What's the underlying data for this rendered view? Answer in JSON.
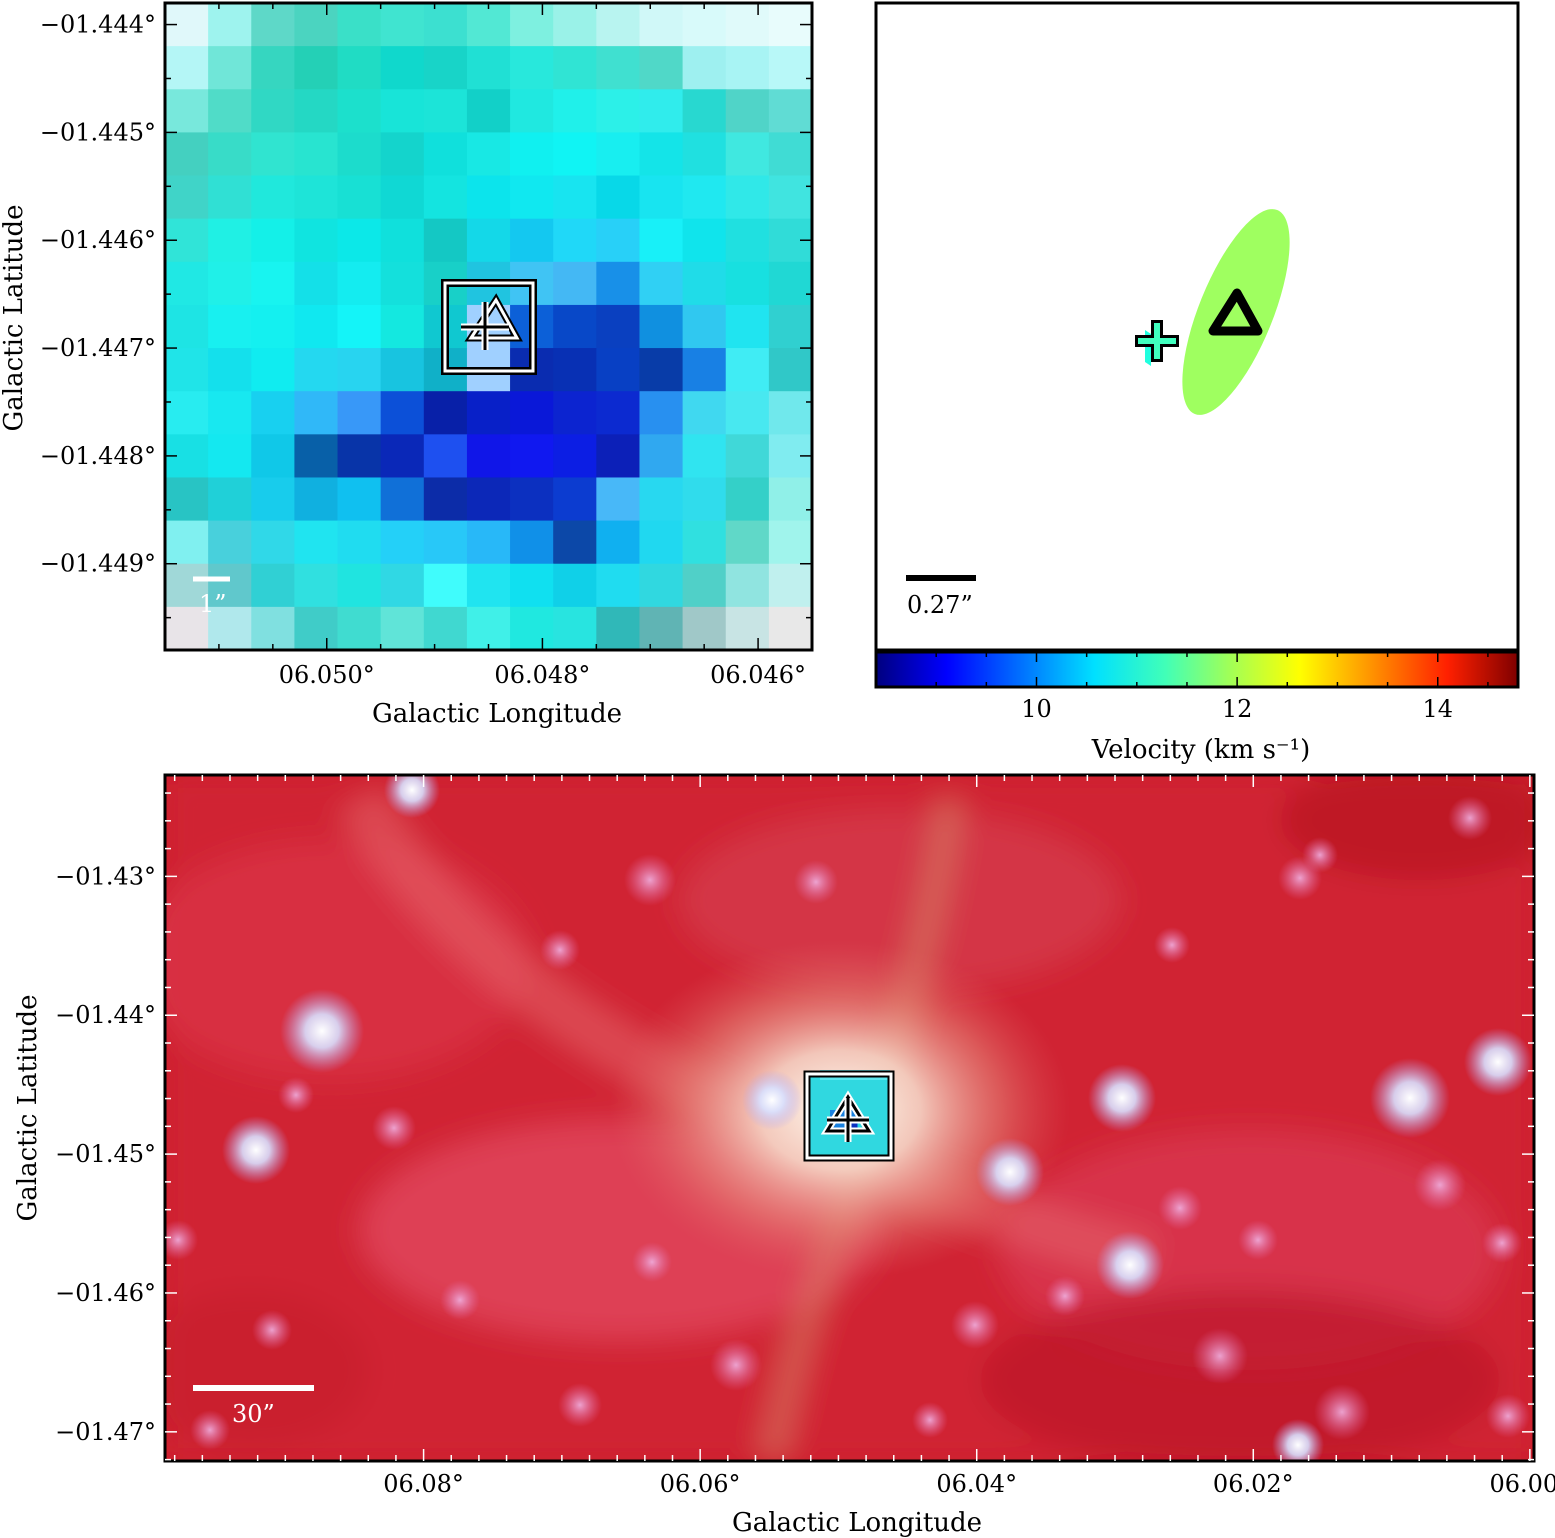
{
  "chart_data": [
    {
      "type": "heatmap",
      "panel": "top-left",
      "xlabel": "Galactic Longitude",
      "ylabel": "Galactic Latitude",
      "x_ticks": [
        "06.050°",
        "06.048°",
        "06.046°"
      ],
      "x_tick_values": [
        6.05,
        6.048,
        6.046
      ],
      "y_ticks": [
        "−01.444°",
        "−01.445°",
        "−01.446°",
        "−01.447°",
        "−01.448°",
        "−01.449°"
      ],
      "y_tick_values": [
        -1.444,
        -1.445,
        -1.446,
        -1.447,
        -1.448,
        -1.449
      ],
      "xlim": [
        6.0515,
        6.0455
      ],
      "ylim": [
        -1.4498,
        -1.4438
      ],
      "scale_bar_label": "1”",
      "pixel_grid": {
        "rows": 15,
        "cols": 15,
        "colors": [
          [
            "#e0f8fa",
            "#9ef3ee",
            "#5ed8c8",
            "#4bd4c0",
            "#3ae0c8",
            "#40e4d0",
            "#3ce0d0",
            "#52e8d4",
            "#7ef0e0",
            "#9af2e8",
            "#b8f4f0",
            "#d0f8f8",
            "#d8fafa",
            "#e0fafa",
            "#e8fcfc"
          ],
          [
            "#b4f6f6",
            "#70e6d8",
            "#36d6c0",
            "#24d0b6",
            "#20dcc4",
            "#10d8cc",
            "#18d4c8",
            "#20e0d4",
            "#28e8dc",
            "#30e4d4",
            "#40e0d0",
            "#50d8c8",
            "#9ef0f0",
            "#a8f4f4",
            "#b8f8f8"
          ],
          [
            "#78e8dc",
            "#50dcc8",
            "#30d8c4",
            "#24d8c4",
            "#1ce0cc",
            "#18e4d8",
            "#1ce4d8",
            "#12d0c8",
            "#20e8e0",
            "#20f0ea",
            "#2cf0e8",
            "#30ecec",
            "#28d8d0",
            "#50d4c8",
            "#60dcd4"
          ],
          [
            "#44d0c0",
            "#38dcc8",
            "#30e4d0",
            "#28e4d0",
            "#1cdccc",
            "#14d4cc",
            "#10e0dc",
            "#18e8e4",
            "#10f0f0",
            "#10f4f4",
            "#18eef0",
            "#14e4e8",
            "#20e0e0",
            "#40e8e0",
            "#40dcd4"
          ],
          [
            "#40d4c8",
            "#30e0d4",
            "#20e8dc",
            "#1ee4d8",
            "#18e0d4",
            "#10d8d4",
            "#14e4e0",
            "#0ce4ec",
            "#10e8f0",
            "#18e4f0",
            "#08d8e8",
            "#18e4f0",
            "#20e8f0",
            "#30e8e8",
            "#40e4e0"
          ],
          [
            "#30e4d8",
            "#20f0e4",
            "#14f0e8",
            "#10e4e0",
            "#0ce8e8",
            "#10e0dc",
            "#14c8c4",
            "#14d8e8",
            "#14c8f0",
            "#20d8f8",
            "#28d0f8",
            "#18f0f8",
            "#10e4ec",
            "#20e0e0",
            "#30dcd8"
          ],
          [
            "#20e8e4",
            "#20f0e8",
            "#18f4f0",
            "#14e0e8",
            "#14ecf0",
            "#14e0dc",
            "#18d0c8",
            "#20c4e0",
            "#40c4f4",
            "#44b8f4",
            "#1890e8",
            "#30d0f4",
            "#20dce8",
            "#18e0e0",
            "#20d8d4"
          ],
          [
            "#1ee4e4",
            "#18f0f0",
            "#14f0f0",
            "#10e8f0",
            "#14f4f8",
            "#14e8e0",
            "#10c8d0",
            "#a0d0ff",
            "#0c60d8",
            "#0848c8",
            "#0a40c0",
            "#1090e0",
            "#30c8f0",
            "#20e4f0",
            "#30d0d0"
          ],
          [
            "#20e4e8",
            "#14e0ec",
            "#10ecf0",
            "#24d8f0",
            "#28d4f0",
            "#18c4e0",
            "#10b0c8",
            "#a0d0ff",
            "#0a2cb0",
            "#0830b4",
            "#0840c4",
            "#083ca8",
            "#1880e4",
            "#40ecf4",
            "#30c8c8"
          ],
          [
            "#28ecf0",
            "#18e8f0",
            "#18d0f0",
            "#30b8f8",
            "#3898f8",
            "#0c50d8",
            "#0820a8",
            "#0820c8",
            "#0a18d8",
            "#0c24d0",
            "#0c2ad0",
            "#2890f0",
            "#40d8f0",
            "#48e8f0",
            "#70e8ec"
          ],
          [
            "#18e0e4",
            "#14e8f0",
            "#10c8e8",
            "#0860a8",
            "#0834a8",
            "#0a28b8",
            "#1e50f0",
            "#1016e8",
            "#1018f0",
            "#0c1ee4",
            "#0c20b8",
            "#30a8f0",
            "#30e4f0",
            "#40d8d8",
            "#80ecf0"
          ],
          [
            "#28c4c4",
            "#20d0d8",
            "#18ccec",
            "#10b0e0",
            "#10c0f0",
            "#1070d8",
            "#0c2ca8",
            "#0c28b8",
            "#0c30c0",
            "#0c3cd0",
            "#48b8f8",
            "#28d8f0",
            "#30dcec",
            "#34d0c8",
            "#90f0e8"
          ],
          [
            "#80f0f0",
            "#48d0dc",
            "#30d8e8",
            "#20e4f0",
            "#20dcf0",
            "#24d0f8",
            "#28c8f8",
            "#28b8f8",
            "#1090e8",
            "#0c48a8",
            "#10b0f0",
            "#20d8f0",
            "#30e0e0",
            "#60d8c8",
            "#a0f4ec"
          ],
          [
            "#a0d8d8",
            "#60c8cc",
            "#30d0d4",
            "#30e0e0",
            "#20e4e0",
            "#30d8e4",
            "#40fcfc",
            "#20e4f0",
            "#10e0f0",
            "#10d0e8",
            "#20dcf0",
            "#30d8e0",
            "#50d0c8",
            "#90e4e0",
            "#c0f0ee"
          ],
          [
            "#e8e4e8",
            "#b0e8ec",
            "#80e0e0",
            "#40ccc8",
            "#40dcd0",
            "#60e4d8",
            "#40d8d0",
            "#40f0e8",
            "#20e8e0",
            "#28e4e0",
            "#30b8b8",
            "#60b4b4",
            "#a0c8c8",
            "#c8e4e4",
            "#e8e8e8"
          ]
        ]
      },
      "markers": [
        "plus",
        "triangle",
        "box"
      ]
    },
    {
      "type": "scatter",
      "panel": "top-right",
      "points": [
        {
          "symbol": "plus",
          "velocity": 11.2
        },
        {
          "symbol": "triangle",
          "velocity": 11.0
        }
      ],
      "ellipse_velocity": 11.8,
      "scale_bar_label": "0.27”",
      "colorbar": {
        "label": "Velocity (km s⁻¹)",
        "ticks": [
          "10",
          "12",
          "14"
        ],
        "tick_values": [
          10,
          12,
          14
        ],
        "range": [
          8.4,
          14.8
        ],
        "colormap": "jet"
      }
    },
    {
      "type": "heatmap",
      "panel": "bottom",
      "xlabel": "Galactic Longitude",
      "ylabel": "Galactic Latitude",
      "x_ticks": [
        "06.08°",
        "06.06°",
        "06.04°",
        "06.02°",
        "06.00°"
      ],
      "x_tick_values": [
        6.08,
        6.06,
        6.04,
        6.02,
        6.0
      ],
      "y_ticks": [
        "−01.43°",
        "−01.44°",
        "−01.45°",
        "−01.46°",
        "−01.47°"
      ],
      "y_tick_values": [
        -1.43,
        -1.44,
        -1.45,
        -1.46,
        -1.47
      ],
      "xlim": [
        6.0987,
        5.9997
      ],
      "ylim": [
        -1.4721,
        -1.4227
      ],
      "scale_bar_label": "30”",
      "image_description_colors": {
        "background": "#cc1e2c",
        "emission": "#f4e4d8",
        "stars": "#c8d4ff"
      },
      "markers": [
        "plus",
        "triangle",
        "box"
      ]
    }
  ]
}
